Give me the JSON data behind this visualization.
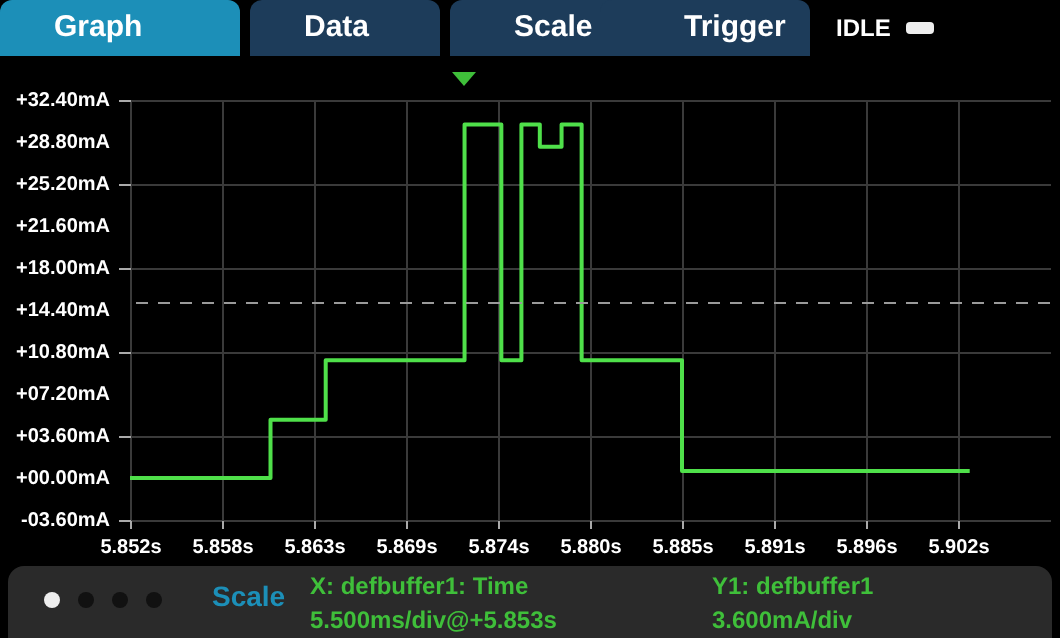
{
  "chart_data": {
    "type": "step",
    "x": [
      5.852,
      5.8604,
      5.8637,
      5.872,
      5.8742,
      5.8754,
      5.8765,
      5.8778,
      5.879,
      5.885,
      5.9022
    ],
    "series": [
      {
        "color": "#4fe04a",
        "values": [
          0,
          5.0,
          10.1,
          30.3,
          10.1,
          30.3,
          28.4,
          30.3,
          10.1,
          0.6,
          0.6
        ]
      }
    ],
    "xlim": [
      5.852,
      5.907
    ],
    "xticks": [
      {
        "value": 5.852,
        "label": "5.852s"
      },
      {
        "value": 5.8575,
        "label": "5.858s"
      },
      {
        "value": 5.863,
        "label": "5.863s"
      },
      {
        "value": 5.8685,
        "label": "5.869s"
      },
      {
        "value": 5.874,
        "label": "5.874s"
      },
      {
        "value": 5.8795,
        "label": "5.880s"
      },
      {
        "value": 5.885,
        "label": "5.885s"
      },
      {
        "value": 5.8905,
        "label": "5.891s"
      },
      {
        "value": 5.896,
        "label": "5.896s"
      },
      {
        "value": 5.9015,
        "label": "5.902s"
      }
    ],
    "ylim": [
      -3.6,
      32.4
    ],
    "yticks": [
      {
        "value": -3.6,
        "label": "-03.60mA"
      },
      {
        "value": 0,
        "label": "+00.00mA"
      },
      {
        "value": 3.6,
        "label": "+03.60mA"
      },
      {
        "value": 7.2,
        "label": "+07.20mA"
      },
      {
        "value": 10.8,
        "label": "+10.80mA"
      },
      {
        "value": 14.4,
        "label": "+14.40mA"
      },
      {
        "value": 18,
        "label": "+18.00mA"
      },
      {
        "value": 21.6,
        "label": "+21.60mA"
      },
      {
        "value": 25.2,
        "label": "+25.20mA"
      },
      {
        "value": 28.8,
        "label": "+28.80mA"
      },
      {
        "value": 32.4,
        "label": "+32.40mA"
      }
    ],
    "ref_lines": [
      {
        "axis": "y",
        "value": 15,
        "color": "#9a9a9a",
        "line_style": "dashed"
      }
    ],
    "grid": true,
    "line_style": "solid",
    "annotations": [
      "Graph",
      "Data",
      "Scale",
      "Trigger",
      "IDLE",
      "Scale",
      "X: defbuffer1: Time",
      "5.500ms/div@+5.853s",
      "Y1: defbuffer1",
      "3.600mA/div"
    ]
  }
}
